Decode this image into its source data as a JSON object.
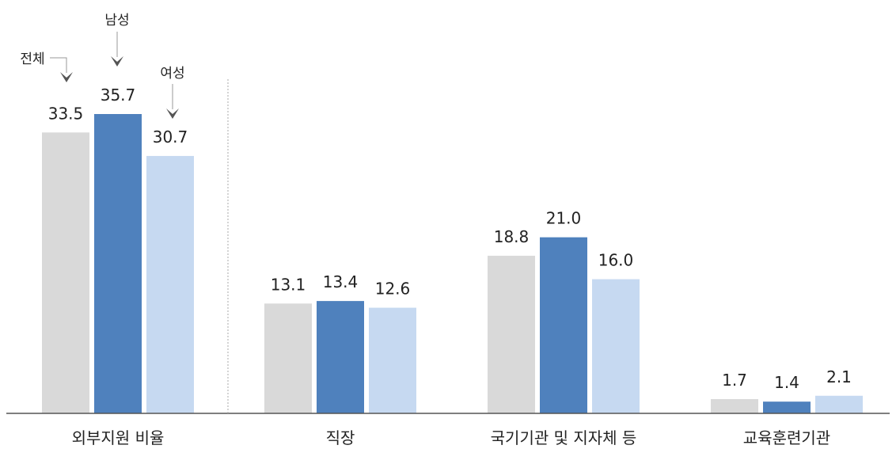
{
  "colors": {
    "total": "#d9d9d9",
    "male": "#4f81bd",
    "female": "#c6d9f1",
    "axis": "#555555",
    "arrow": "#555555"
  },
  "chart_data": {
    "type": "bar",
    "categories": [
      "외부지원 비율",
      "직장",
      "국기기관 및 지자체 등",
      "교육훈련기관"
    ],
    "series": [
      {
        "name": "전체",
        "values": [
          33.5,
          13.1,
          18.8,
          1.7
        ]
      },
      {
        "name": "남성",
        "values": [
          35.7,
          13.4,
          21.0,
          1.4
        ]
      },
      {
        "name": "여성",
        "values": [
          30.7,
          12.6,
          16.0,
          2.1
        ]
      }
    ],
    "ylim": [
      0,
      35.7
    ],
    "grid": false,
    "legend": "arrow callouts above first category"
  }
}
